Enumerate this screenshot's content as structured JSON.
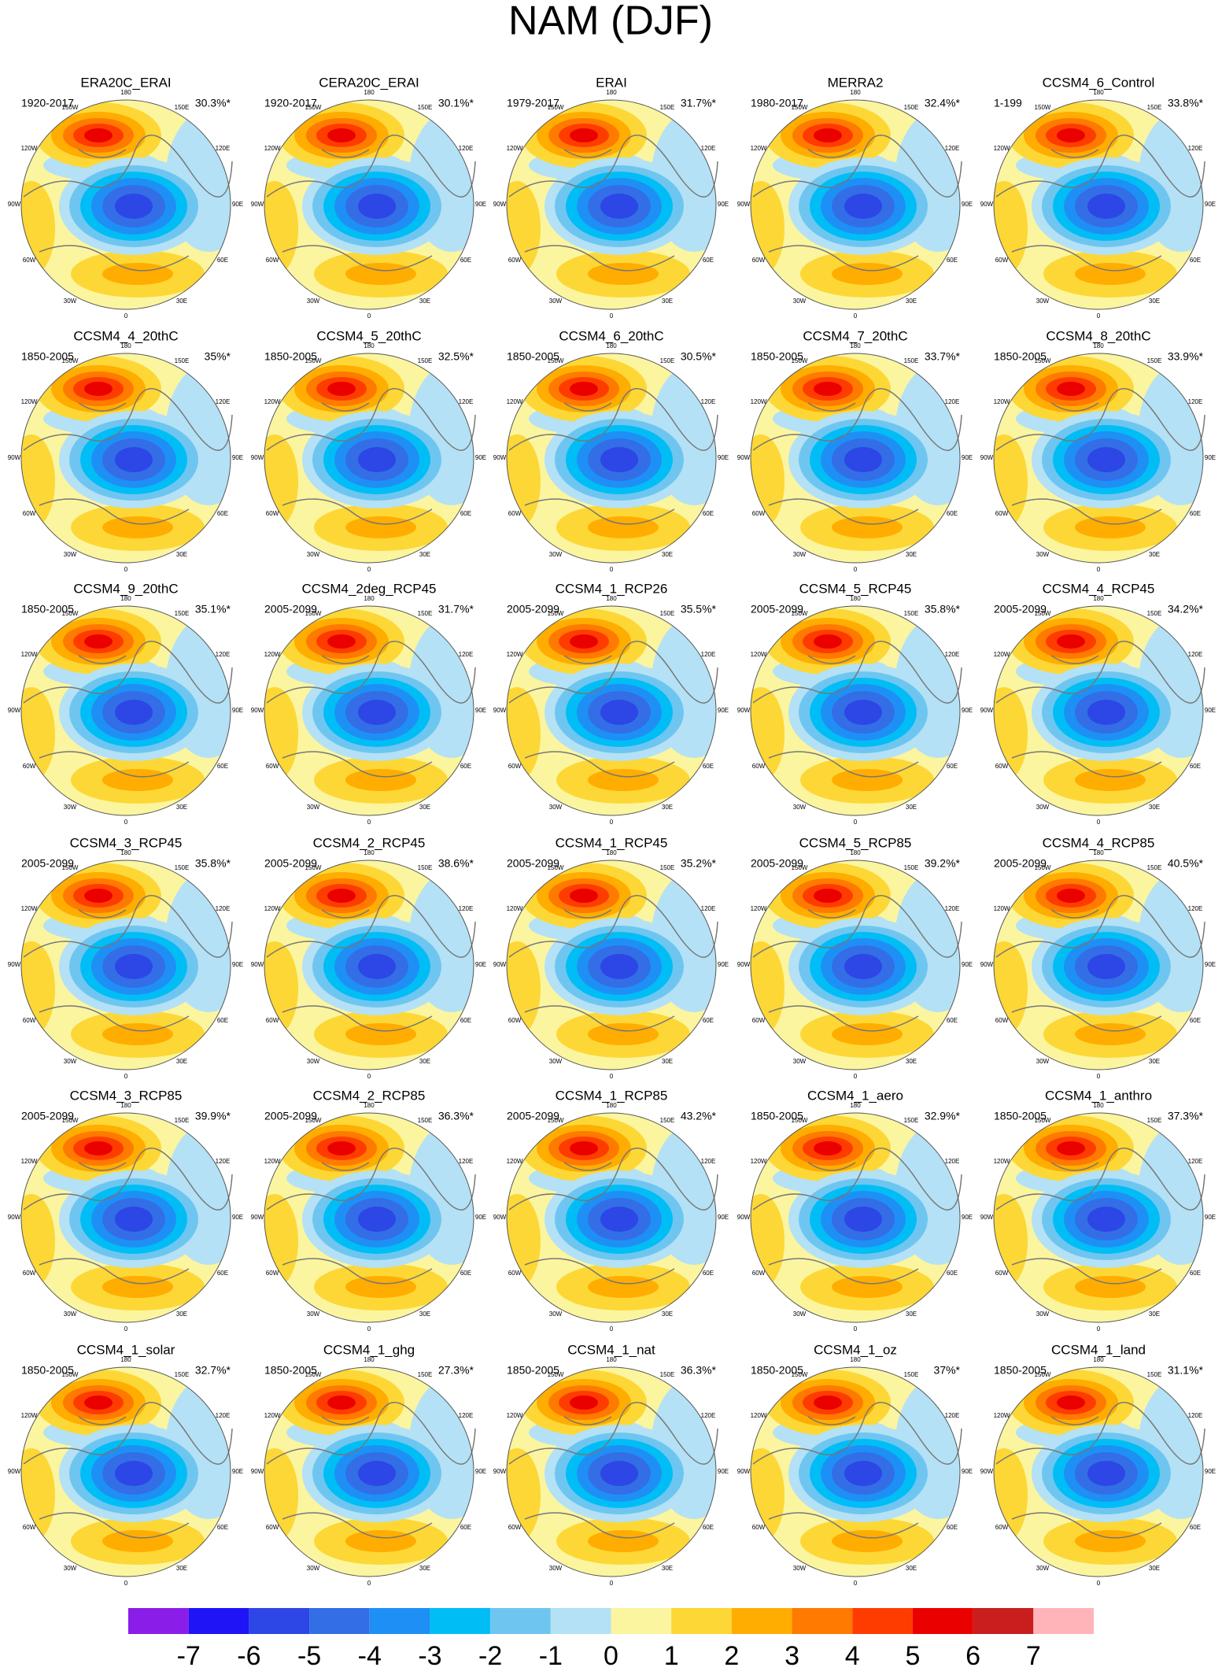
{
  "title": "NAM (DJF)",
  "longitude_labels": [
    "0",
    "30E",
    "60E",
    "90E",
    "120E",
    "150E",
    "180",
    "150W",
    "120W",
    "90W",
    "60W",
    "30W"
  ],
  "panels": [
    {
      "name": "ERA20C_ERAI",
      "period": "1920-2017",
      "percent": "30.3%*"
    },
    {
      "name": "CERA20C_ERAI",
      "period": "1920-2017",
      "percent": "30.1%*"
    },
    {
      "name": "ERAI",
      "period": "1979-2017",
      "percent": "31.7%*"
    },
    {
      "name": "MERRA2",
      "period": "1980-2017",
      "percent": "32.4%*"
    },
    {
      "name": "CCSM4_6_Control",
      "period": "1-199",
      "percent": "33.8%*"
    },
    {
      "name": "CCSM4_4_20thC",
      "period": "1850-2005",
      "percent": "35%*"
    },
    {
      "name": "CCSM4_5_20thC",
      "period": "1850-2005",
      "percent": "32.5%*"
    },
    {
      "name": "CCSM4_6_20thC",
      "period": "1850-2005",
      "percent": "30.5%*"
    },
    {
      "name": "CCSM4_7_20thC",
      "period": "1850-2005",
      "percent": "33.7%*"
    },
    {
      "name": "CCSM4_8_20thC",
      "period": "1850-2005",
      "percent": "33.9%*"
    },
    {
      "name": "CCSM4_9_20thC",
      "period": "1850-2005",
      "percent": "35.1%*"
    },
    {
      "name": "CCSM4_2deg_RCP45",
      "period": "2005-2099",
      "percent": "31.7%*"
    },
    {
      "name": "CCSM4_1_RCP26",
      "period": "2005-2099",
      "percent": "35.5%*"
    },
    {
      "name": "CCSM4_5_RCP45",
      "period": "2005-2099",
      "percent": "35.8%*"
    },
    {
      "name": "CCSM4_4_RCP45",
      "period": "2005-2099",
      "percent": "34.2%*"
    },
    {
      "name": "CCSM4_3_RCP45",
      "period": "2005-2099",
      "percent": "35.8%*"
    },
    {
      "name": "CCSM4_2_RCP45",
      "period": "2005-2099",
      "percent": "38.6%*"
    },
    {
      "name": "CCSM4_1_RCP45",
      "period": "2005-2099",
      "percent": "35.2%*"
    },
    {
      "name": "CCSM4_5_RCP85",
      "period": "2005-2099",
      "percent": "39.2%*"
    },
    {
      "name": "CCSM4_4_RCP85",
      "period": "2005-2099",
      "percent": "40.5%*"
    },
    {
      "name": "CCSM4_3_RCP85",
      "period": "2005-2099",
      "percent": "39.9%*"
    },
    {
      "name": "CCSM4_2_RCP85",
      "period": "2005-2099",
      "percent": "36.3%*"
    },
    {
      "name": "CCSM4_1_RCP85",
      "period": "2005-2099",
      "percent": "43.2%*"
    },
    {
      "name": "CCSM4_1_aero",
      "period": "1850-2005",
      "percent": "32.9%*"
    },
    {
      "name": "CCSM4_1_anthro",
      "period": "1850-2005",
      "percent": "37.3%*"
    },
    {
      "name": "CCSM4_1_solar",
      "period": "1850-2005",
      "percent": "32.7%*"
    },
    {
      "name": "CCSM4_1_ghg",
      "period": "1850-2005",
      "percent": "27.3%*"
    },
    {
      "name": "CCSM4_1_nat",
      "period": "1850-2005",
      "percent": "36.3%*"
    },
    {
      "name": "CCSM4_1_oz",
      "period": "1850-2005",
      "percent": "37%*"
    },
    {
      "name": "CCSM4_1_land",
      "period": "1850-2005",
      "percent": "31.1%*"
    }
  ],
  "colorbar": {
    "colors": [
      "#8a1ee8",
      "#1e14f5",
      "#2d46e6",
      "#336ee6",
      "#1e90f5",
      "#00bef5",
      "#6ec6f0",
      "#b4e1f5",
      "#fbf5a0",
      "#fdd735",
      "#ffad00",
      "#ff7a00",
      "#ff3c00",
      "#eb0000",
      "#c81e1e",
      "#ffb4b9"
    ],
    "levels": [
      -7,
      -6,
      -5,
      -4,
      -3,
      -2,
      -1,
      0,
      1,
      2,
      3,
      4,
      5,
      6,
      7
    ]
  }
}
